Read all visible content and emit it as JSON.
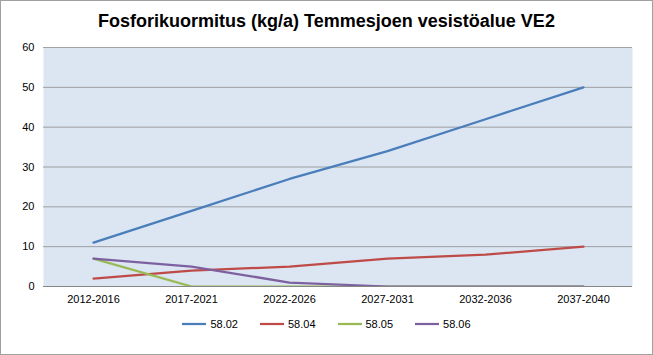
{
  "chart_data": {
    "type": "line",
    "title": "Fosforikuormitus (kg/a) Temmesjoen vesistöalue VE2",
    "categories": [
      "2012-2016",
      "2017-2021",
      "2022-2026",
      "2027-2031",
      "2032-2036",
      "2037-2040"
    ],
    "series": [
      {
        "name": "58.02",
        "color": "#4a7ebb",
        "values": [
          11,
          19,
          27,
          34,
          42,
          50
        ]
      },
      {
        "name": "58.04",
        "color": "#be4b48",
        "values": [
          2,
          4,
          5,
          7,
          8,
          10
        ]
      },
      {
        "name": "58.05",
        "color": "#98b954",
        "values": [
          7,
          0,
          0,
          0,
          0,
          0
        ]
      },
      {
        "name": "58.06",
        "color": "#7d60a0",
        "values": [
          7,
          5,
          1,
          0,
          0,
          0
        ]
      }
    ],
    "ylim": [
      0,
      60
    ],
    "yticks": [
      0,
      10,
      20,
      30,
      40,
      50,
      60
    ],
    "grid": true,
    "legend": "bottom"
  }
}
